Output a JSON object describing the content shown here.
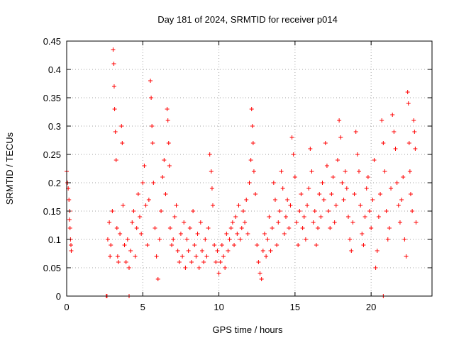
{
  "chart_data": {
    "type": "scatter",
    "title": "Day 181 of 2024, SRMTID for receiver p014",
    "xlabel": "GPS time / hours",
    "ylabel": "SRMTID / TECUs",
    "xlim": [
      0,
      24
    ],
    "ylim": [
      0,
      0.45
    ],
    "grid": true,
    "marker": "+",
    "color": "#ff0000",
    "x_ticks": [
      0,
      5,
      10,
      15,
      20
    ],
    "x_tick_labels": [
      "0",
      "5",
      "10",
      "15",
      "20"
    ],
    "y_ticks": [
      0,
      0.05,
      0.1,
      0.15,
      0.2,
      0.25,
      0.3,
      0.35,
      0.4,
      0.45
    ],
    "y_tick_labels": [
      "0",
      "0.05",
      "0.1",
      "0.15",
      "0.2",
      "0.25",
      "0.3",
      "0.35",
      "0.4",
      "0.45"
    ],
    "series": [
      {
        "name": "p014",
        "points": [
          [
            0.0,
            0.22
          ],
          [
            0.05,
            0.2
          ],
          [
            0.1,
            0.19
          ],
          [
            0.15,
            0.17
          ],
          [
            0.2,
            0.15
          ],
          [
            0.22,
            0.12
          ],
          [
            0.25,
            0.1
          ],
          [
            0.28,
            0.09
          ],
          [
            0.3,
            0.08
          ],
          [
            0.18,
            0.135
          ],
          [
            2.6,
            0.0
          ],
          [
            2.65,
            0.0
          ],
          [
            4.1,
            0.0
          ],
          [
            20.8,
            0.0
          ],
          [
            2.7,
            0.1
          ],
          [
            2.8,
            0.13
          ],
          [
            2.85,
            0.07
          ],
          [
            2.9,
            0.09
          ],
          [
            3.0,
            0.15
          ],
          [
            3.05,
            0.435
          ],
          [
            3.1,
            0.41
          ],
          [
            3.12,
            0.37
          ],
          [
            3.15,
            0.33
          ],
          [
            3.2,
            0.29
          ],
          [
            3.25,
            0.24
          ],
          [
            3.3,
            0.12
          ],
          [
            3.35,
            0.07
          ],
          [
            3.4,
            0.06
          ],
          [
            3.5,
            0.11
          ],
          [
            3.6,
            0.3
          ],
          [
            3.65,
            0.27
          ],
          [
            3.7,
            0.16
          ],
          [
            3.8,
            0.09
          ],
          [
            3.9,
            0.06
          ],
          [
            4.0,
            0.1
          ],
          [
            4.1,
            0.05
          ],
          [
            4.2,
            0.08
          ],
          [
            4.3,
            0.13
          ],
          [
            4.4,
            0.15
          ],
          [
            4.5,
            0.07
          ],
          [
            4.6,
            0.12
          ],
          [
            4.7,
            0.18
          ],
          [
            4.8,
            0.14
          ],
          [
            4.9,
            0.11
          ],
          [
            5.0,
            0.2
          ],
          [
            5.1,
            0.23
          ],
          [
            5.2,
            0.16
          ],
          [
            5.3,
            0.09
          ],
          [
            5.4,
            0.17
          ],
          [
            5.5,
            0.38
          ],
          [
            5.55,
            0.35
          ],
          [
            5.6,
            0.3
          ],
          [
            5.65,
            0.27
          ],
          [
            5.7,
            0.2
          ],
          [
            5.8,
            0.12
          ],
          [
            5.9,
            0.07
          ],
          [
            6.0,
            0.03
          ],
          [
            6.1,
            0.1
          ],
          [
            6.2,
            0.15
          ],
          [
            6.3,
            0.21
          ],
          [
            6.4,
            0.24
          ],
          [
            6.5,
            0.18
          ],
          [
            6.6,
            0.33
          ],
          [
            6.65,
            0.31
          ],
          [
            6.7,
            0.27
          ],
          [
            6.75,
            0.23
          ],
          [
            6.8,
            0.12
          ],
          [
            6.9,
            0.09
          ],
          [
            7.0,
            0.1
          ],
          [
            7.1,
            0.14
          ],
          [
            7.2,
            0.16
          ],
          [
            7.3,
            0.08
          ],
          [
            7.4,
            0.06
          ],
          [
            7.5,
            0.11
          ],
          [
            7.6,
            0.07
          ],
          [
            7.7,
            0.13
          ],
          [
            7.8,
            0.05
          ],
          [
            7.9,
            0.1
          ],
          [
            8.0,
            0.08
          ],
          [
            8.1,
            0.12
          ],
          [
            8.2,
            0.06
          ],
          [
            8.3,
            0.15
          ],
          [
            8.4,
            0.09
          ],
          [
            8.5,
            0.07
          ],
          [
            8.6,
            0.11
          ],
          [
            8.7,
            0.05
          ],
          [
            8.8,
            0.13
          ],
          [
            8.9,
            0.08
          ],
          [
            9.0,
            0.06
          ],
          [
            9.1,
            0.1
          ],
          [
            9.2,
            0.07
          ],
          [
            9.3,
            0.12
          ],
          [
            9.4,
            0.25
          ],
          [
            9.5,
            0.22
          ],
          [
            9.55,
            0.19
          ],
          [
            9.6,
            0.16
          ],
          [
            9.7,
            0.09
          ],
          [
            9.8,
            0.06
          ],
          [
            9.9,
            0.08
          ],
          [
            10.0,
            0.04
          ],
          [
            10.1,
            0.06
          ],
          [
            10.2,
            0.09
          ],
          [
            10.3,
            0.07
          ],
          [
            10.4,
            0.05
          ],
          [
            10.5,
            0.11
          ],
          [
            10.6,
            0.08
          ],
          [
            10.7,
            0.1
          ],
          [
            10.8,
            0.12
          ],
          [
            10.9,
            0.13
          ],
          [
            11.0,
            0.09
          ],
          [
            11.1,
            0.14
          ],
          [
            11.2,
            0.11
          ],
          [
            11.3,
            0.16
          ],
          [
            11.4,
            0.1
          ],
          [
            11.5,
            0.12
          ],
          [
            11.6,
            0.15
          ],
          [
            11.7,
            0.13
          ],
          [
            11.8,
            0.17
          ],
          [
            11.9,
            0.11
          ],
          [
            12.0,
            0.2
          ],
          [
            12.1,
            0.24
          ],
          [
            12.15,
            0.33
          ],
          [
            12.2,
            0.3
          ],
          [
            12.25,
            0.27
          ],
          [
            12.3,
            0.22
          ],
          [
            12.4,
            0.18
          ],
          [
            12.5,
            0.09
          ],
          [
            12.6,
            0.06
          ],
          [
            12.7,
            0.04
          ],
          [
            12.8,
            0.03
          ],
          [
            12.9,
            0.08
          ],
          [
            13.0,
            0.11
          ],
          [
            13.1,
            0.07
          ],
          [
            13.2,
            0.1
          ],
          [
            13.3,
            0.14
          ],
          [
            13.4,
            0.08
          ],
          [
            13.5,
            0.12
          ],
          [
            13.6,
            0.2
          ],
          [
            13.7,
            0.17
          ],
          [
            13.8,
            0.09
          ],
          [
            13.9,
            0.13
          ],
          [
            14.0,
            0.15
          ],
          [
            14.1,
            0.22
          ],
          [
            14.2,
            0.19
          ],
          [
            14.3,
            0.11
          ],
          [
            14.4,
            0.14
          ],
          [
            14.5,
            0.17
          ],
          [
            14.6,
            0.12
          ],
          [
            14.7,
            0.16
          ],
          [
            14.8,
            0.28
          ],
          [
            14.9,
            0.25
          ],
          [
            15.0,
            0.21
          ],
          [
            15.1,
            0.13
          ],
          [
            15.2,
            0.09
          ],
          [
            15.3,
            0.15
          ],
          [
            15.4,
            0.18
          ],
          [
            15.5,
            0.12
          ],
          [
            15.6,
            0.14
          ],
          [
            15.7,
            0.1
          ],
          [
            15.8,
            0.16
          ],
          [
            15.9,
            0.19
          ],
          [
            16.0,
            0.26
          ],
          [
            16.1,
            0.22
          ],
          [
            16.2,
            0.13
          ],
          [
            16.3,
            0.15
          ],
          [
            16.4,
            0.09
          ],
          [
            16.5,
            0.12
          ],
          [
            16.6,
            0.18
          ],
          [
            16.7,
            0.14
          ],
          [
            16.8,
            0.2
          ],
          [
            16.9,
            0.17
          ],
          [
            17.0,
            0.27
          ],
          [
            17.1,
            0.23
          ],
          [
            17.2,
            0.15
          ],
          [
            17.3,
            0.12
          ],
          [
            17.4,
            0.18
          ],
          [
            17.5,
            0.21
          ],
          [
            17.6,
            0.13
          ],
          [
            17.7,
            0.16
          ],
          [
            17.8,
            0.24
          ],
          [
            17.9,
            0.31
          ],
          [
            18.0,
            0.28
          ],
          [
            18.1,
            0.2
          ],
          [
            18.2,
            0.17
          ],
          [
            18.3,
            0.22
          ],
          [
            18.4,
            0.19
          ],
          [
            18.5,
            0.14
          ],
          [
            18.6,
            0.1
          ],
          [
            18.7,
            0.08
          ],
          [
            18.8,
            0.13
          ],
          [
            18.9,
            0.18
          ],
          [
            19.0,
            0.29
          ],
          [
            19.1,
            0.25
          ],
          [
            19.2,
            0.22
          ],
          [
            19.3,
            0.16
          ],
          [
            19.4,
            0.11
          ],
          [
            19.5,
            0.09
          ],
          [
            19.6,
            0.14
          ],
          [
            19.7,
            0.19
          ],
          [
            19.8,
            0.21
          ],
          [
            19.9,
            0.15
          ],
          [
            20.0,
            0.12
          ],
          [
            20.1,
            0.17
          ],
          [
            20.2,
            0.24
          ],
          [
            20.3,
            0.05
          ],
          [
            20.4,
            0.08
          ],
          [
            20.5,
            0.14
          ],
          [
            20.6,
            0.18
          ],
          [
            20.7,
            0.31
          ],
          [
            20.8,
            0.27
          ],
          [
            20.9,
            0.22
          ],
          [
            21.0,
            0.15
          ],
          [
            21.1,
            0.1
          ],
          [
            21.2,
            0.12
          ],
          [
            21.3,
            0.19
          ],
          [
            21.4,
            0.32
          ],
          [
            21.5,
            0.29
          ],
          [
            21.6,
            0.26
          ],
          [
            21.7,
            0.2
          ],
          [
            21.8,
            0.16
          ],
          [
            21.9,
            0.13
          ],
          [
            22.0,
            0.17
          ],
          [
            22.1,
            0.21
          ],
          [
            22.2,
            0.1
          ],
          [
            22.3,
            0.07
          ],
          [
            22.4,
            0.36
          ],
          [
            22.45,
            0.34
          ],
          [
            22.5,
            0.27
          ],
          [
            22.55,
            0.22
          ],
          [
            22.6,
            0.18
          ],
          [
            22.7,
            0.15
          ],
          [
            22.8,
            0.31
          ],
          [
            22.85,
            0.29
          ],
          [
            22.9,
            0.26
          ],
          [
            22.95,
            0.13
          ]
        ]
      }
    ]
  }
}
